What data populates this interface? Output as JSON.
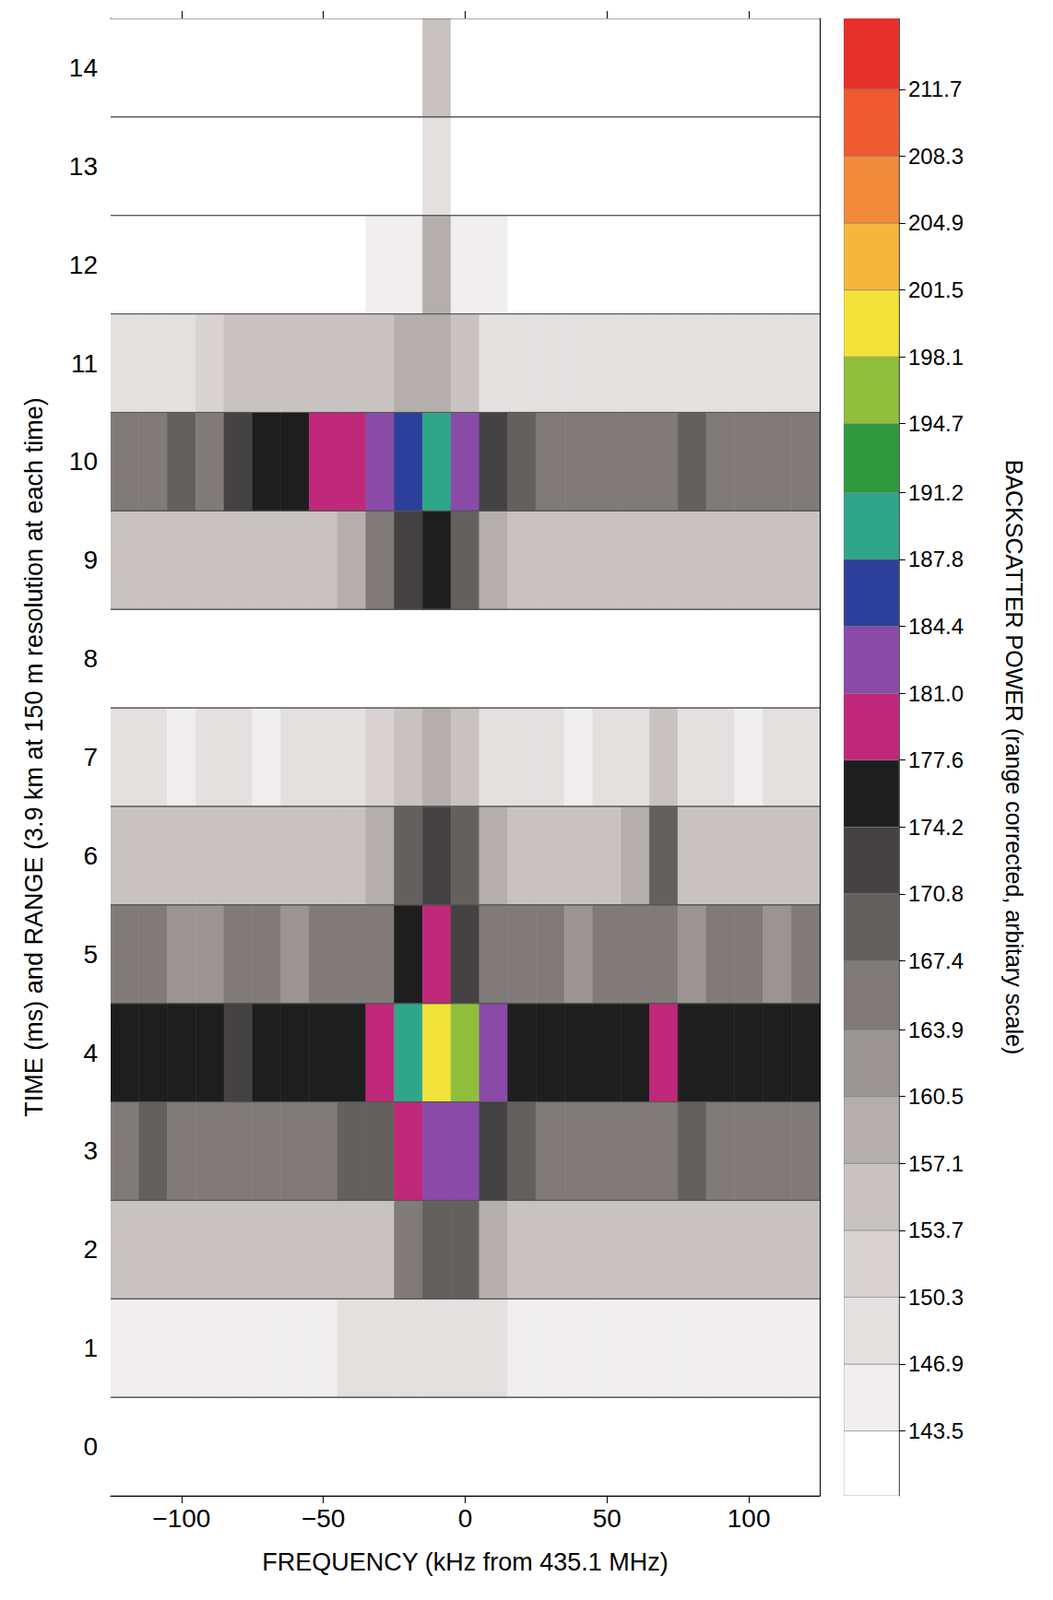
{
  "chart_data": {
    "type": "heatmap",
    "xlabel": "FREQUENCY (kHz from 435.1 MHz)",
    "ylabel": "TIME (ms) and RANGE (3.9 km at 150 m resolution at each time)",
    "x": [
      -120,
      -110,
      -100,
      -90,
      -80,
      -70,
      -60,
      -50,
      -40,
      -30,
      -20,
      -10,
      0,
      10,
      20,
      30,
      40,
      50,
      60,
      70,
      80,
      90,
      100,
      110,
      120
    ],
    "y": [
      0,
      1,
      2,
      3,
      4,
      5,
      6,
      7,
      8,
      9,
      10,
      11,
      12,
      13,
      14
    ],
    "cells": [
      [
        142,
        142,
        142,
        143,
        142,
        142,
        142,
        142,
        142,
        142,
        142,
        142,
        142,
        142,
        142,
        142,
        142,
        142,
        142,
        142,
        142,
        142,
        142,
        142,
        142
      ],
      [
        146,
        145,
        146,
        146,
        145,
        146,
        146,
        146,
        147,
        147,
        149,
        150,
        148,
        147,
        146,
        146,
        145,
        146,
        146,
        146,
        145,
        146,
        146,
        146,
        145
      ],
      [
        155,
        156,
        155,
        155,
        154,
        155,
        155,
        155,
        156,
        157,
        165,
        170,
        168,
        158,
        155,
        155,
        154,
        155,
        155,
        156,
        155,
        155,
        154,
        155,
        155
      ],
      [
        167,
        168,
        167,
        167,
        166,
        167,
        167,
        167,
        168,
        170,
        178,
        183,
        182,
        172,
        168,
        167,
        167,
        166,
        167,
        167,
        168,
        167,
        167,
        166,
        167
      ],
      [
        175,
        176,
        175,
        175,
        174,
        175,
        175,
        175,
        176,
        178,
        189,
        201,
        195,
        184,
        177,
        175,
        175,
        175,
        176,
        180,
        175,
        175,
        176,
        175,
        176
      ],
      [
        164,
        164,
        163,
        163,
        164,
        164,
        163,
        164,
        164,
        166,
        176,
        179,
        172,
        166,
        164,
        164,
        163,
        164,
        164,
        164,
        163,
        164,
        164,
        163,
        164
      ],
      [
        155,
        154,
        155,
        155,
        154,
        155,
        154,
        155,
        155,
        158,
        168,
        173,
        170,
        160,
        156,
        155,
        154,
        155,
        160,
        168,
        157,
        155,
        154,
        155,
        155
      ],
      [
        147,
        147,
        146,
        147,
        147,
        146,
        147,
        149,
        150,
        152,
        157,
        160,
        155,
        150,
        147,
        147,
        146,
        147,
        150,
        156,
        149,
        147,
        146,
        147,
        147
      ],
      [
        142,
        142,
        142,
        142,
        142,
        142,
        142,
        142,
        142,
        142,
        142,
        143,
        142,
        142,
        142,
        142,
        142,
        142,
        142,
        142,
        142,
        142,
        142,
        142,
        142
      ],
      [
        156,
        157,
        156,
        156,
        155,
        156,
        156,
        156,
        158,
        165,
        174,
        177,
        170,
        160,
        157,
        156,
        155,
        156,
        156,
        157,
        156,
        156,
        155,
        156,
        156
      ],
      [
        167,
        167,
        168,
        167,
        172,
        175,
        176,
        178,
        180,
        182,
        186,
        188,
        181,
        174,
        168,
        167,
        167,
        166,
        167,
        167,
        168,
        167,
        167,
        166,
        167
      ],
      [
        149,
        149,
        148,
        151,
        154,
        155,
        155,
        154,
        155,
        156,
        158,
        160,
        154,
        150,
        149,
        148,
        149,
        149,
        148,
        149,
        149,
        148,
        149,
        149,
        149
      ],
      [
        142,
        142,
        142,
        142,
        142,
        142,
        142,
        142,
        143,
        144,
        145,
        160,
        146,
        144,
        143,
        142,
        142,
        142,
        142,
        142,
        142,
        142,
        142,
        142,
        142
      ],
      [
        142,
        142,
        142,
        142,
        142,
        142,
        142,
        142,
        142,
        142,
        143,
        150,
        143,
        142,
        142,
        142,
        142,
        142,
        142,
        142,
        142,
        142,
        142,
        142,
        142
      ],
      [
        142,
        142,
        142,
        142,
        142,
        142,
        142,
        142,
        142,
        142,
        143,
        155,
        143,
        142,
        142,
        142,
        142,
        142,
        142,
        142,
        142,
        142,
        142,
        142,
        142
      ]
    ],
    "xlim": [
      -125,
      125
    ],
    "xticks": [
      {
        "value": -100,
        "label": "−100"
      },
      {
        "value": -50,
        "label": "−50"
      },
      0,
      50,
      100
    ],
    "ylim": [
      -0.5,
      14.5
    ],
    "yticks": [
      0,
      1,
      2,
      3,
      4,
      5,
      6,
      7,
      8,
      9,
      10,
      11,
      12,
      13,
      14
    ],
    "colorbar": {
      "label": "BACKSCATTER POWER (range corrected, arbitary scale)",
      "range": [
        140.2,
        215.3
      ],
      "ticks": [
        143.5,
        146.9,
        150.3,
        153.7,
        157.1,
        160.5,
        163.9,
        167.4,
        170.8,
        174.2,
        177.6,
        {
          "value": 181,
          "label": "181.0"
        },
        184.4,
        187.8,
        191.2,
        194.7,
        198.1,
        201.5,
        204.9,
        208.3,
        211.7
      ],
      "colors": [
        "#ffffff",
        "#f0eeee",
        "#e4e0e0",
        "#d8d2d2",
        "#c8c2c0",
        "#b4aeac",
        "#9a9492",
        "#807a78",
        "#64605e",
        "#444242",
        "#1e1e1e",
        "#c0287a",
        "#8a4aa8",
        "#2c3f9a",
        "#2fa68a",
        "#2f9a3e",
        "#8fbf3a",
        "#f2e23a",
        "#f6b63c",
        "#f28a3c",
        "#ef5a30",
        "#e8302a"
      ]
    }
  }
}
